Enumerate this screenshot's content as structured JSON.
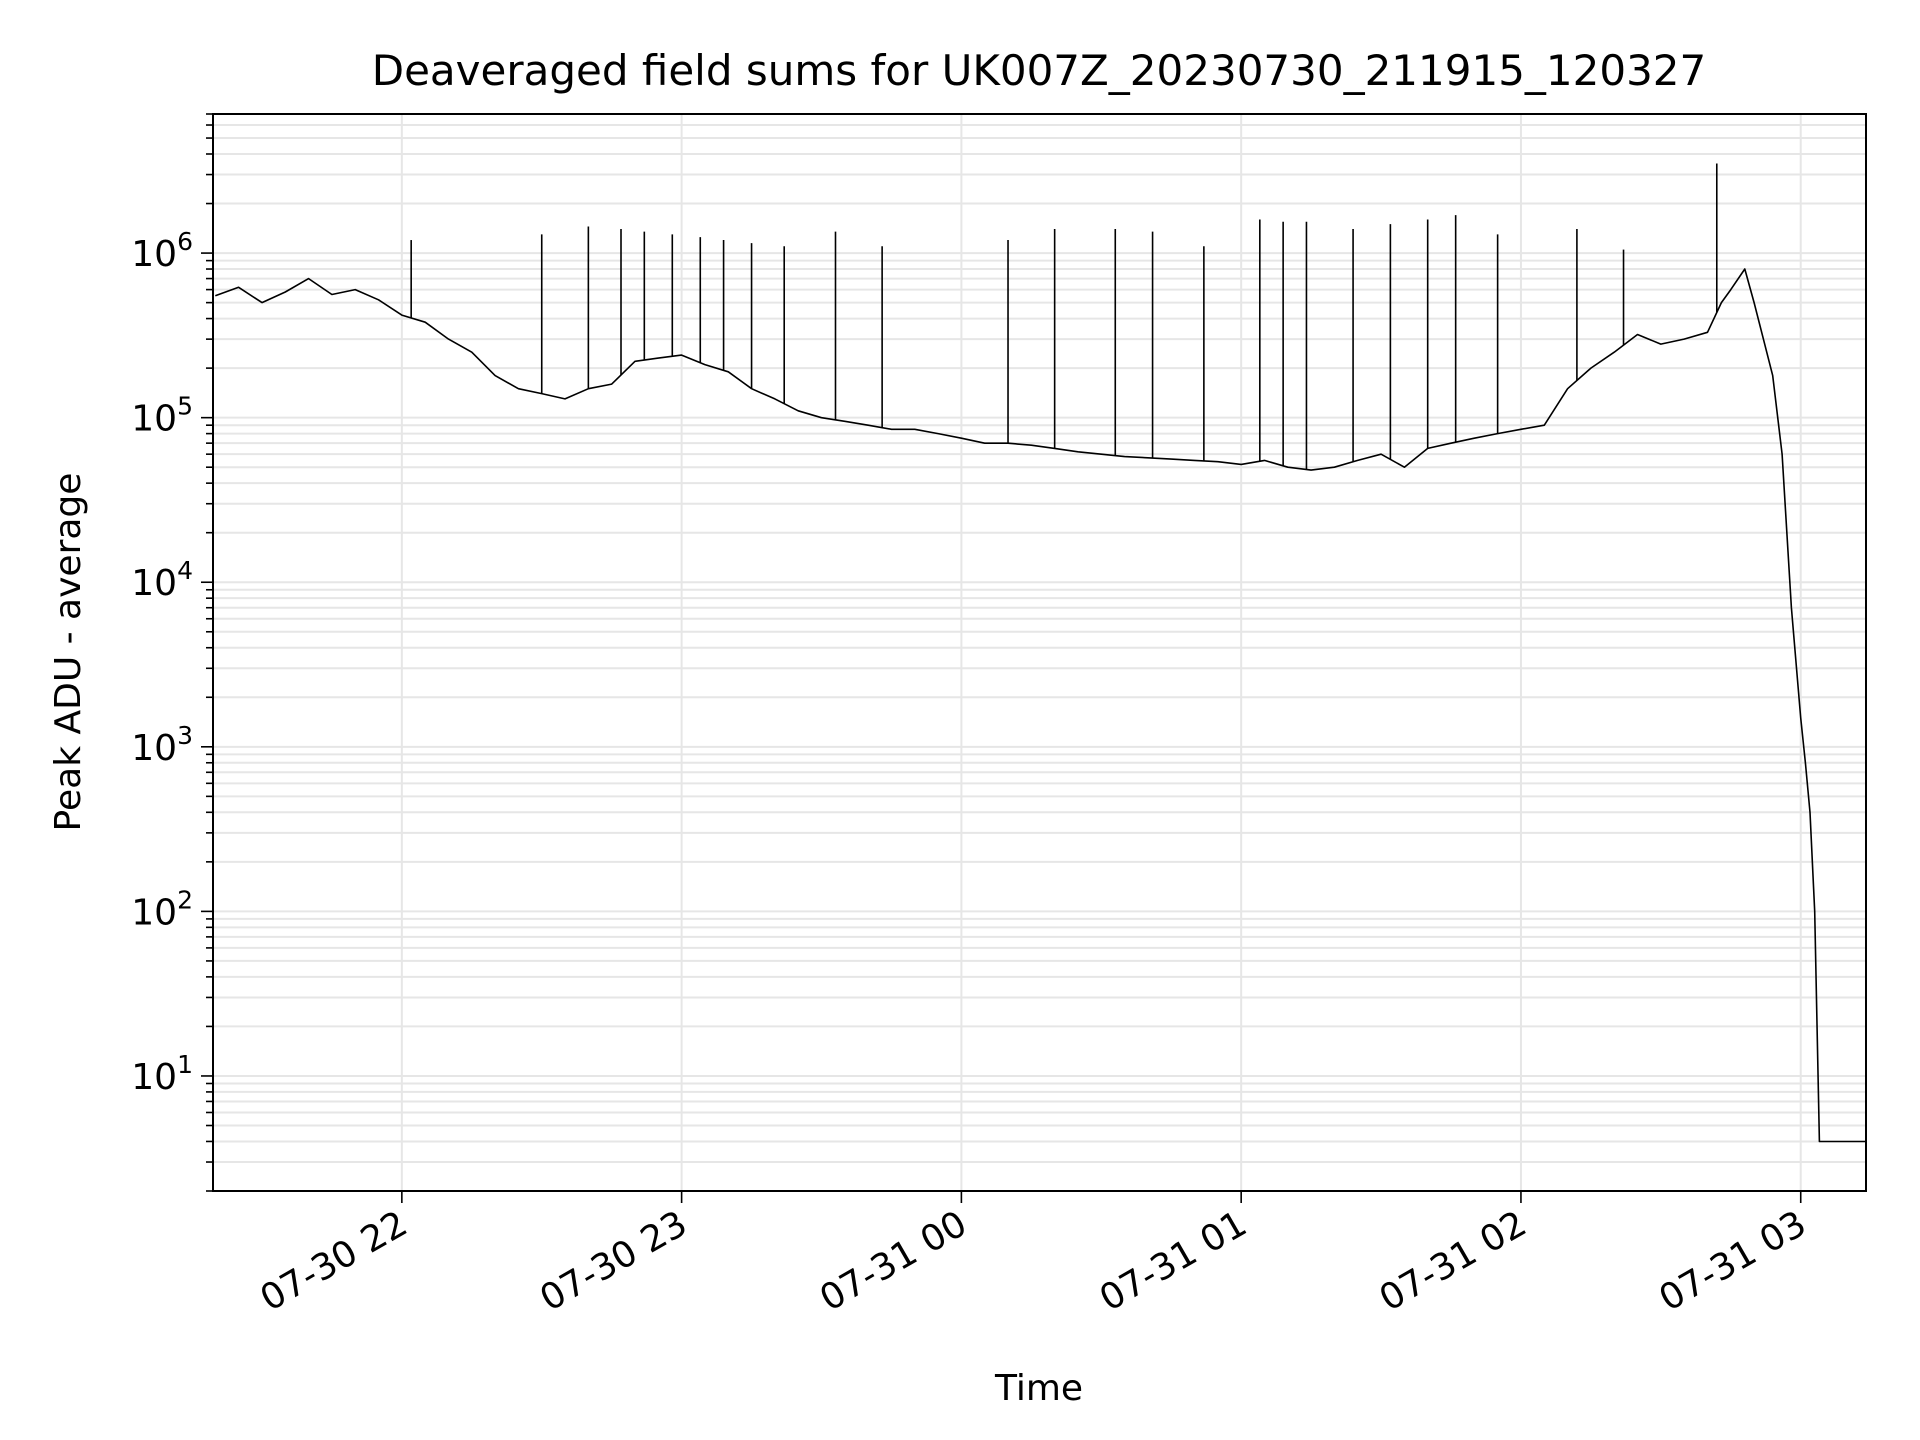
{
  "chart_data": {
    "type": "line",
    "title": "Deaveraged field sums for UK007Z_20230730_211915_120327",
    "xlabel": "Time",
    "ylabel": "Peak ADU - average",
    "yscale": "log",
    "xlim": [
      "2023-07-30 21:19:30",
      "2023-07-31 03:14:00"
    ],
    "ylim": [
      2,
      7000000
    ],
    "x_ticks": [
      {
        "label": "07-30 22",
        "value": "2023-07-30 22:00"
      },
      {
        "label": "07-30 23",
        "value": "2023-07-30 23:00"
      },
      {
        "label": "07-31 00",
        "value": "2023-07-31 00:00"
      },
      {
        "label": "07-31 01",
        "value": "2023-07-31 01:00"
      },
      {
        "label": "07-31 02",
        "value": "2023-07-31 02:00"
      },
      {
        "label": "07-31 03",
        "value": "2023-07-31 03:00"
      }
    ],
    "y_ticks": [
      {
        "base": "10",
        "exp": "1",
        "value": 10
      },
      {
        "base": "10",
        "exp": "2",
        "value": 100
      },
      {
        "base": "10",
        "exp": "3",
        "value": 1000
      },
      {
        "base": "10",
        "exp": "4",
        "value": 10000
      },
      {
        "base": "10",
        "exp": "5",
        "value": 100000
      },
      {
        "base": "10",
        "exp": "6",
        "value": 1000000
      }
    ],
    "grid": true,
    "line_color": "#000000",
    "grid_color": "#e6e6e6",
    "series": [
      {
        "x": [
          "2023-07-30 21:20",
          "2023-07-30 21:25",
          "2023-07-30 21:30",
          "2023-07-30 21:35",
          "2023-07-30 21:40",
          "2023-07-30 21:45",
          "2023-07-30 21:50",
          "2023-07-30 21:55",
          "2023-07-30 22:00",
          "2023-07-30 22:05",
          "2023-07-30 22:10",
          "2023-07-30 22:15",
          "2023-07-30 22:20",
          "2023-07-30 22:25",
          "2023-07-30 22:30",
          "2023-07-30 22:35",
          "2023-07-30 22:40",
          "2023-07-30 22:45",
          "2023-07-30 22:50",
          "2023-07-30 22:55",
          "2023-07-30 23:00",
          "2023-07-30 23:05",
          "2023-07-30 23:10",
          "2023-07-30 23:15",
          "2023-07-30 23:20",
          "2023-07-30 23:25",
          "2023-07-30 23:30",
          "2023-07-30 23:35",
          "2023-07-30 23:40",
          "2023-07-30 23:45",
          "2023-07-30 23:50",
          "2023-07-30 23:55",
          "2023-07-31 00:00",
          "2023-07-31 00:05",
          "2023-07-31 00:10",
          "2023-07-31 00:15",
          "2023-07-31 00:20",
          "2023-07-31 00:25",
          "2023-07-31 00:30",
          "2023-07-31 00:35",
          "2023-07-31 00:40",
          "2023-07-31 00:45",
          "2023-07-31 00:50",
          "2023-07-31 00:55",
          "2023-07-31 01:00",
          "2023-07-31 01:05",
          "2023-07-31 01:10",
          "2023-07-31 01:15",
          "2023-07-31 01:20",
          "2023-07-31 01:25",
          "2023-07-31 01:30",
          "2023-07-31 01:35",
          "2023-07-31 01:40",
          "2023-07-31 01:45",
          "2023-07-31 01:50",
          "2023-07-31 01:55",
          "2023-07-31 02:00",
          "2023-07-31 02:05",
          "2023-07-31 02:10",
          "2023-07-31 02:15",
          "2023-07-31 02:20",
          "2023-07-31 02:25",
          "2023-07-31 02:30",
          "2023-07-31 02:35",
          "2023-07-31 02:40",
          "2023-07-31 02:43",
          "2023-07-31 02:45",
          "2023-07-31 02:48",
          "2023-07-31 02:50",
          "2023-07-31 02:52",
          "2023-07-31 02:54",
          "2023-07-31 02:56",
          "2023-07-31 02:58",
          "2023-07-31 03:00",
          "2023-07-31 03:01",
          "2023-07-31 03:02",
          "2023-07-31 03:03",
          "2023-07-31 03:04",
          "2023-07-31 03:05",
          "2023-07-31 03:06",
          "2023-07-31 03:08",
          "2023-07-31 03:10",
          "2023-07-31 03:12",
          "2023-07-31 03:14"
        ],
        "y": [
          550000,
          620000,
          500000,
          580000,
          700000,
          560000,
          600000,
          520000,
          420000,
          380000,
          300000,
          250000,
          180000,
          150000,
          140000,
          130000,
          150000,
          160000,
          220000,
          230000,
          240000,
          210000,
          190000,
          150000,
          130000,
          110000,
          100000,
          95000,
          90000,
          85000,
          85000,
          80000,
          75000,
          70000,
          70000,
          68000,
          65000,
          62000,
          60000,
          58000,
          57000,
          56000,
          55000,
          54000,
          52000,
          55000,
          50000,
          48000,
          50000,
          55000,
          60000,
          50000,
          65000,
          70000,
          75000,
          80000,
          85000,
          90000,
          150000,
          200000,
          250000,
          320000,
          280000,
          300000,
          330000,
          500000,
          600000,
          800000,
          500000,
          300000,
          180000,
          60000,
          7000,
          1500,
          800,
          400,
          100,
          4,
          4,
          4,
          4,
          4,
          4,
          4
        ]
      }
    ],
    "spikes": [
      {
        "x": "2023-07-30 22:02",
        "y": 1200000
      },
      {
        "x": "2023-07-30 22:30",
        "y": 1300000
      },
      {
        "x": "2023-07-30 22:40",
        "y": 1450000
      },
      {
        "x": "2023-07-30 22:47",
        "y": 1400000
      },
      {
        "x": "2023-07-30 22:52",
        "y": 1350000
      },
      {
        "x": "2023-07-30 22:58",
        "y": 1300000
      },
      {
        "x": "2023-07-30 23:04",
        "y": 1250000
      },
      {
        "x": "2023-07-30 23:09",
        "y": 1200000
      },
      {
        "x": "2023-07-30 23:15",
        "y": 1150000
      },
      {
        "x": "2023-07-30 23:22",
        "y": 1100000
      },
      {
        "x": "2023-07-30 23:33",
        "y": 1350000
      },
      {
        "x": "2023-07-30 23:43",
        "y": 1100000
      },
      {
        "x": "2023-07-31 00:10",
        "y": 1200000
      },
      {
        "x": "2023-07-31 00:20",
        "y": 1400000
      },
      {
        "x": "2023-07-31 00:33",
        "y": 1400000
      },
      {
        "x": "2023-07-31 00:41",
        "y": 1350000
      },
      {
        "x": "2023-07-31 00:52",
        "y": 1100000
      },
      {
        "x": "2023-07-31 01:04",
        "y": 1600000
      },
      {
        "x": "2023-07-31 01:09",
        "y": 1550000
      },
      {
        "x": "2023-07-31 01:14",
        "y": 1550000
      },
      {
        "x": "2023-07-31 01:24",
        "y": 1400000
      },
      {
        "x": "2023-07-31 01:32",
        "y": 1500000
      },
      {
        "x": "2023-07-31 01:40",
        "y": 1600000
      },
      {
        "x": "2023-07-31 01:46",
        "y": 1700000
      },
      {
        "x": "2023-07-31 01:55",
        "y": 1300000
      },
      {
        "x": "2023-07-31 02:12",
        "y": 1400000
      },
      {
        "x": "2023-07-31 02:22",
        "y": 1050000
      },
      {
        "x": "2023-07-31 02:42",
        "y": 3500000
      }
    ]
  }
}
